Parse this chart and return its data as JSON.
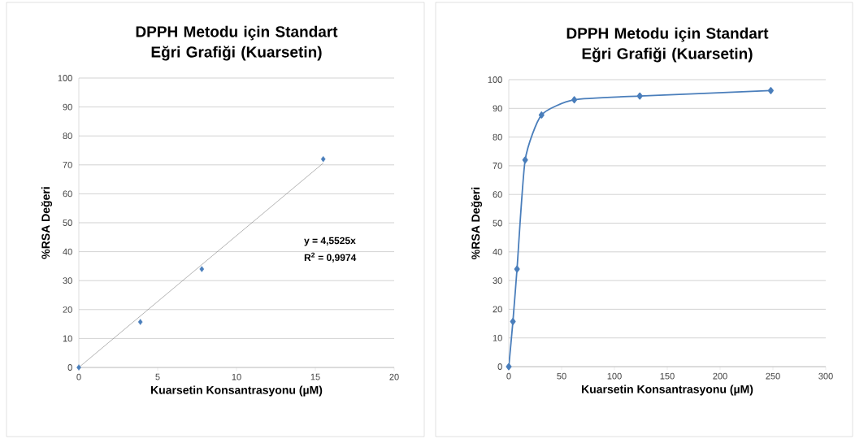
{
  "chart_data": [
    {
      "type": "scatter",
      "title": "DPPH Metodu için Standart Eğri Grafiği (Kuarsetin)",
      "xlabel": "Kuarsetin Konsantrasyonu (µM)",
      "ylabel": "%RSA Değeri",
      "series": [
        {
          "type": "scatter",
          "color": "#4a7ebb",
          "marker": "diamond",
          "x": [
            0,
            3.9,
            7.8,
            15.5
          ],
          "values": [
            0,
            15.7,
            34,
            72
          ]
        },
        {
          "type": "line",
          "color": "#7f7f7f",
          "marker": "none",
          "x": [
            0,
            15.5
          ],
          "values": [
            0,
            70.6
          ]
        }
      ],
      "annotations": [
        "y = 4,5525x",
        "R$^{2}$ = 0,9974"
      ],
      "xlim": [
        0,
        20
      ],
      "xticks": [
        0,
        5,
        10,
        15,
        20
      ],
      "ylim": [
        0,
        100
      ],
      "yticks": [
        0,
        10,
        20,
        30,
        40,
        50,
        60,
        70,
        80,
        90,
        100
      ],
      "grid": "y"
    },
    {
      "type": "line",
      "title": "DPPH Metodu için Standart Eğri Grafiği (Kuarsetin)",
      "xlabel": "Kuarsetin Konsantrasyonu (µM)",
      "ylabel": "%RSA Değeri",
      "series": [
        {
          "color": "#4a7ebb",
          "x": [
            0,
            3.9,
            7.8,
            15.5,
            31,
            62,
            124,
            248
          ],
          "values": [
            0,
            15.7,
            34,
            72,
            87.7,
            93,
            94.3,
            96.2
          ]
        }
      ],
      "marker": "diamond",
      "line_style": "solid",
      "xlim": [
        0,
        300
      ],
      "xticks": [
        0,
        50,
        100,
        150,
        200,
        250,
        300
      ],
      "ylim": [
        0,
        100
      ],
      "yticks": [
        0,
        10,
        20,
        30,
        40,
        50,
        60,
        70,
        80,
        90,
        100
      ],
      "grid": "y"
    }
  ]
}
